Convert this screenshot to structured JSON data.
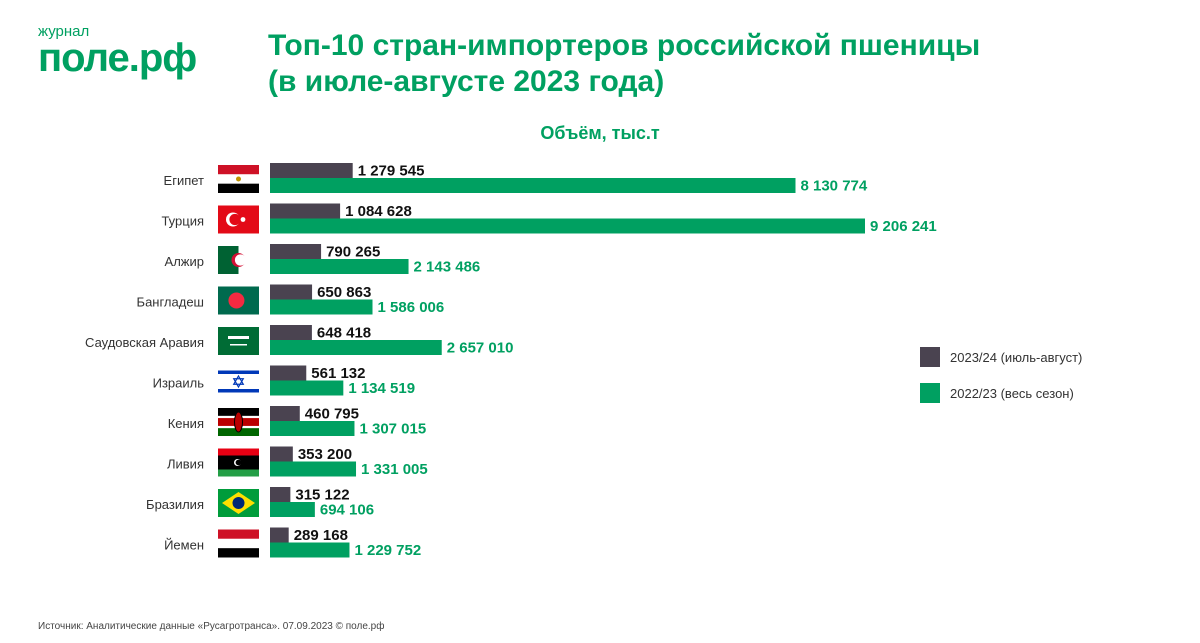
{
  "logo": {
    "small": "журнал",
    "big": "поле.рф"
  },
  "header": {
    "title_line1": "Топ-10 стран-импортеров российской пшеницы",
    "title_line2": "(в июле-августе 2023 года)"
  },
  "chart_data": {
    "type": "bar",
    "orientation": "horizontal",
    "subtitle": "Объём, тыс.т",
    "categories": [
      "Египет",
      "Турция",
      "Алжир",
      "Бангладеш",
      "Саудовская Аравия",
      "Израиль",
      "Кения",
      "Ливия",
      "Бразилия",
      "Йемен"
    ],
    "series": [
      {
        "name": "2023/24 (июль-август)",
        "color": "#4a4350",
        "values": [
          1279545,
          1084628,
          790265,
          650863,
          648418,
          561132,
          460795,
          353200,
          315122,
          289168
        ],
        "labels": [
          "1 279 545",
          "1 084 628",
          "790 265",
          "650 863",
          "648 418",
          "561 132",
          "460 795",
          "353 200",
          "315 122",
          "289 168"
        ]
      },
      {
        "name": "2022/23 (весь сезон)",
        "color": "#00a061",
        "values": [
          8130774,
          9206241,
          2143486,
          1586006,
          2657010,
          1134519,
          1307015,
          1331005,
          694106,
          1229752
        ],
        "labels": [
          "8 130 774",
          "9 206 241",
          "2 143 486",
          "1 586 006",
          "2 657 010",
          "1 134 519",
          "1 307 015",
          "1 331 005",
          "694 106",
          "1 229 752"
        ]
      }
    ],
    "flags": [
      "egypt-flag",
      "turkey-flag",
      "algeria-flag",
      "bangladesh-flag",
      "saudi-arabia-flag",
      "israel-flag",
      "kenya-flag",
      "libya-flag",
      "brazil-flag",
      "yemen-flag"
    ],
    "legend_position": "right",
    "grid": false
  },
  "legend": [
    {
      "label": "2023/24 (июль-август)",
      "color": "#4a4350"
    },
    {
      "label": "2022/23 (весь сезон)",
      "color": "#00a061"
    }
  ],
  "footer": {
    "source": "Источник: Аналитические данные «Русагротранса». 07.09.2023 © поле.рф"
  }
}
